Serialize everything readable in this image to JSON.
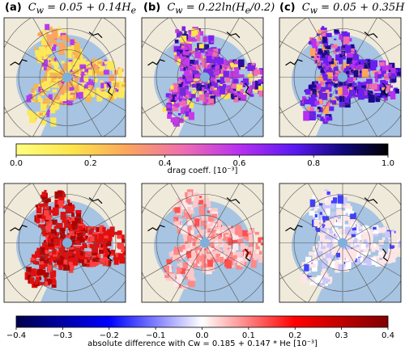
{
  "chart_data": [
    {
      "type": "heatmap",
      "row": "top",
      "panels": [
        {
          "letter": "(a)",
          "formula": "C_w = 0.05 + 0.14H_e"
        },
        {
          "letter": "(b)",
          "formula": "C_w = 0.22ln(H_e/0.2)"
        },
        {
          "letter": "(c)",
          "formula": "C_w = 0.05 + 0.35H_e"
        }
      ],
      "colorbar": {
        "label": "drag coeff. [10^-3]",
        "colormap": "gnuplot2_r",
        "ticks": [
          "0.0",
          "0.2",
          "0.4",
          "0.6",
          "0.8",
          "1.0"
        ],
        "range": [
          0.0,
          1.0
        ]
      }
    },
    {
      "type": "heatmap",
      "row": "bottom",
      "panels": [
        {
          "letter": "",
          "dominant_value": 0.3
        },
        {
          "letter": "",
          "dominant_value": 0.1
        },
        {
          "letter": "",
          "dominant_value": 0.02
        }
      ],
      "colorbar": {
        "label": "absolute difference with C_w = 0.185 + 0.147 * H_e [10^-3]",
        "colormap": "seismic",
        "ticks": [
          "−0.4",
          "−0.3",
          "−0.2",
          "−0.1",
          "0.0",
          "0.1",
          "0.2",
          "0.3",
          "0.4"
        ],
        "range": [
          -0.4,
          0.4
        ]
      }
    }
  ],
  "titles": {
    "a": {
      "letter": "(a)",
      "expr_html": "C<sub>w</sub> = 0.05 + 0.14H<sub>e</sub>"
    },
    "b": {
      "letter": "(b)",
      "expr_html": "C<sub>w</sub> = 0.22<i>ln</i>(H<sub>e</sub>/0.2)"
    },
    "c": {
      "letter": "(c)",
      "expr_html": "C<sub>w</sub> = 0.05 + 0.35H<sub>e</sub>"
    }
  },
  "colorbar_top": {
    "label": "drag coeff. [10⁻³]",
    "ticks": [
      "0.0",
      "0.2",
      "0.4",
      "0.6",
      "0.8",
      "1.0"
    ]
  },
  "colorbar_bottom": {
    "label": "absolute difference with Cw = 0.185 + 0.147 * He [10⁻³]",
    "ticks": [
      "−0.4",
      "−0.3",
      "−0.2",
      "−0.1",
      "0.0",
      "0.1",
      "0.2",
      "0.3",
      "0.4"
    ]
  },
  "colors": {
    "land": "#f0eadb",
    "ocean": "#a7c4e2",
    "pole": "#7fb0dc",
    "coast": "#000000",
    "grid": "#555555"
  }
}
